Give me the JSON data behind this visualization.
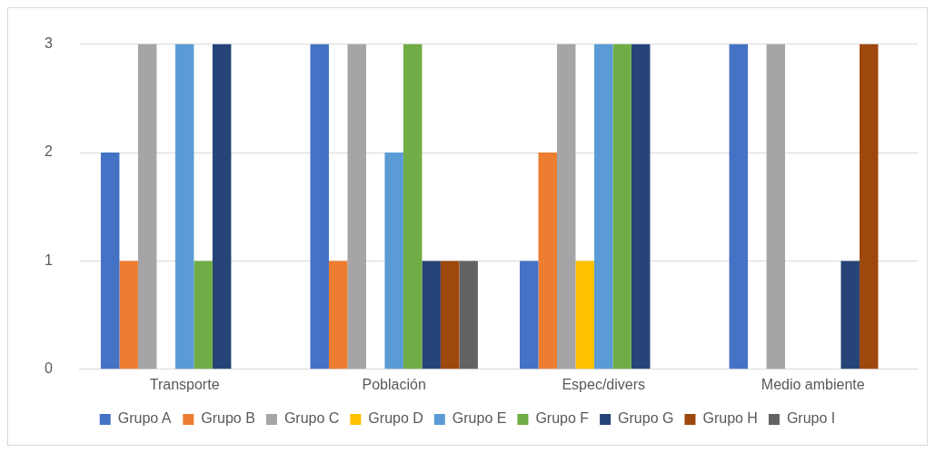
{
  "chart_data": {
    "type": "bar",
    "categories": [
      "Transporte",
      "Población",
      "Espec/divers",
      "Medio ambiente"
    ],
    "series": [
      {
        "name": "Grupo A",
        "color": "#4472c4",
        "values": [
          2,
          3,
          1,
          3
        ]
      },
      {
        "name": "Grupo B",
        "color": "#ed7d31",
        "values": [
          1,
          1,
          2,
          0
        ]
      },
      {
        "name": "Grupo C",
        "color": "#a5a5a5",
        "values": [
          3,
          3,
          3,
          3
        ]
      },
      {
        "name": "Grupo D",
        "color": "#ffc000",
        "values": [
          0,
          0,
          1,
          0
        ]
      },
      {
        "name": "Grupo E",
        "color": "#5b9bd5",
        "values": [
          3,
          2,
          3,
          0
        ]
      },
      {
        "name": "Grupo F",
        "color": "#70ad47",
        "values": [
          1,
          3,
          3,
          0
        ]
      },
      {
        "name": "Grupo G",
        "color": "#264478",
        "values": [
          3,
          1,
          3,
          1
        ]
      },
      {
        "name": "Grupo H",
        "color": "#9e480e",
        "values": [
          0,
          1,
          0,
          3
        ]
      },
      {
        "name": "Grupo I",
        "color": "#636363",
        "values": [
          0,
          1,
          0,
          0
        ]
      }
    ],
    "ylim": [
      0,
      3
    ],
    "yticks": [
      0,
      1,
      2,
      3
    ],
    "grid": "y",
    "legend": "bottom"
  }
}
